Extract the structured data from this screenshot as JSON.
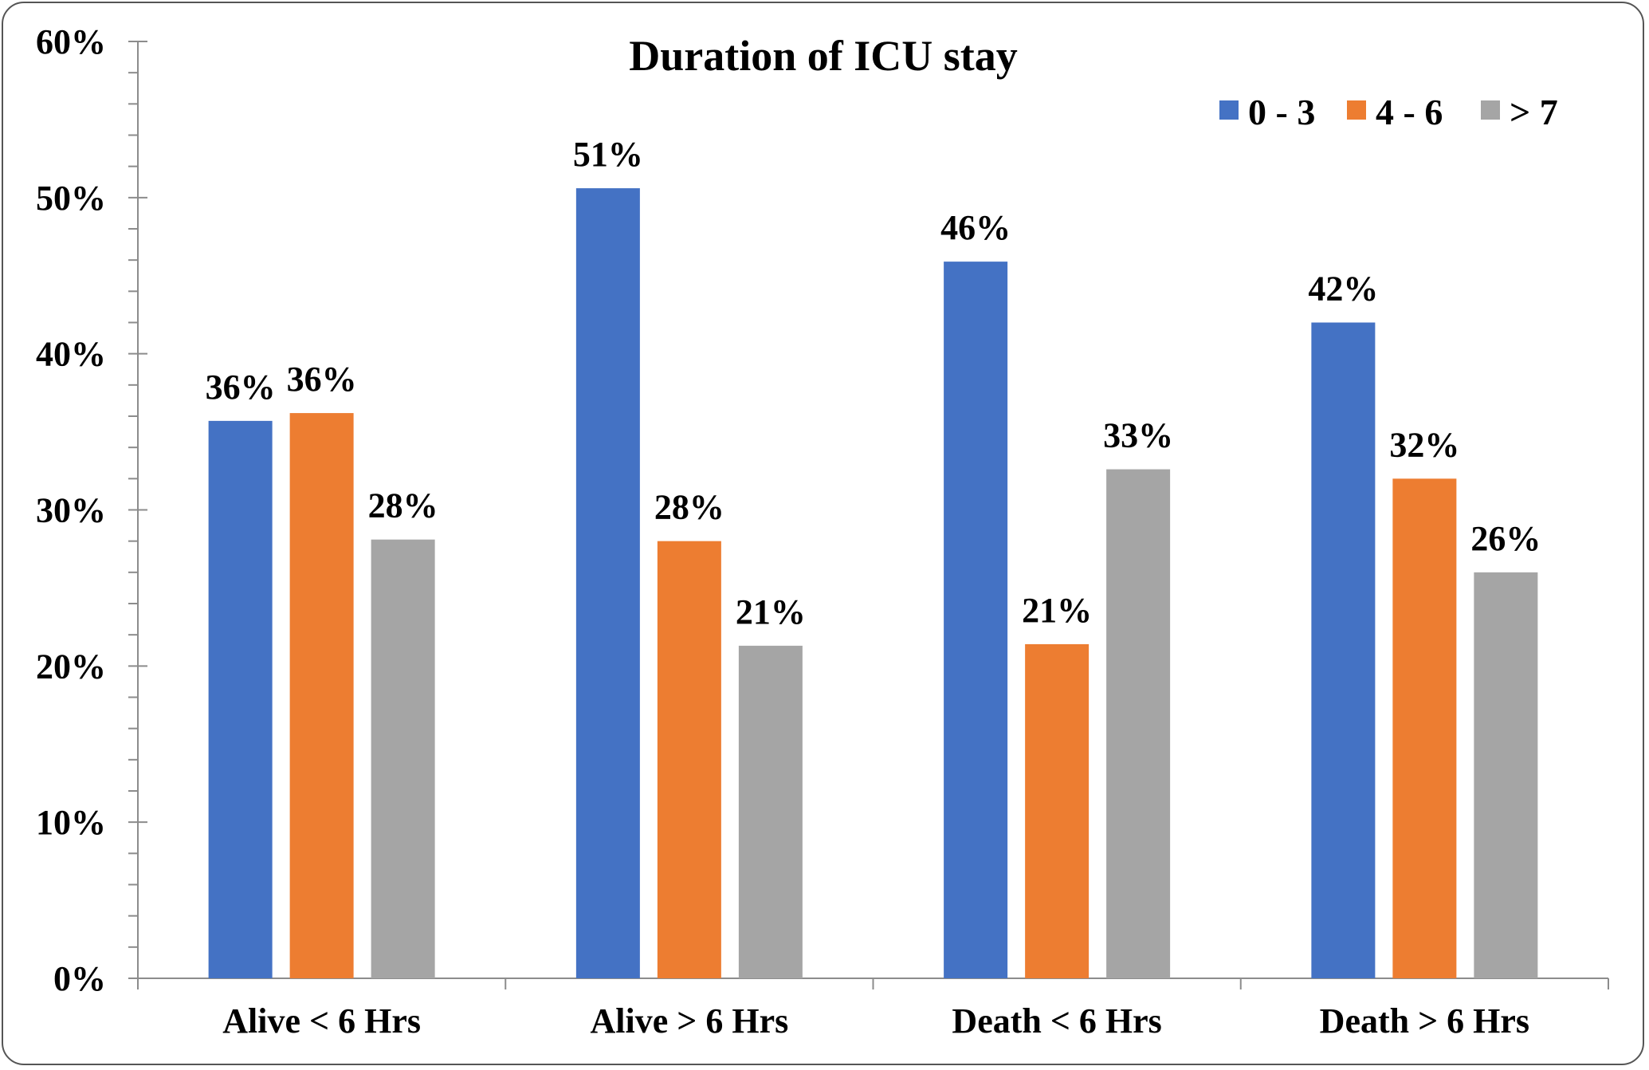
{
  "chart_data": {
    "type": "bar",
    "title": "Duration of ICU stay",
    "categories": [
      "Alive < 6 Hrs",
      "Alive > 6 Hrs",
      "Death < 6 Hrs",
      "Death > 6 Hrs"
    ],
    "series": [
      {
        "name": "0 - 3",
        "color": "#4472c4",
        "values": [
          35.7,
          50.6,
          45.9,
          42.0
        ],
        "labels": [
          "36%",
          "51%",
          "46%",
          "42%"
        ]
      },
      {
        "name": "4 - 6",
        "color": "#ed7d31",
        "values": [
          36.2,
          28.0,
          21.4,
          32.0
        ],
        "labels": [
          "36%",
          "28%",
          "21%",
          "32%"
        ]
      },
      {
        "name": "> 7",
        "color": "#a5a5a5",
        "values": [
          28.1,
          21.3,
          32.6,
          26.0
        ],
        "labels": [
          "28%",
          "21%",
          "33%",
          "26%"
        ]
      }
    ],
    "ylim": [
      0,
      60
    ],
    "yticks": [
      0,
      10,
      20,
      30,
      40,
      50,
      60
    ],
    "ytick_labels": [
      "0%",
      "10%",
      "20%",
      "30%",
      "40%",
      "50%",
      "60%"
    ],
    "xlabel": "",
    "ylabel": "",
    "grid": false,
    "legend_position": "top-right"
  }
}
